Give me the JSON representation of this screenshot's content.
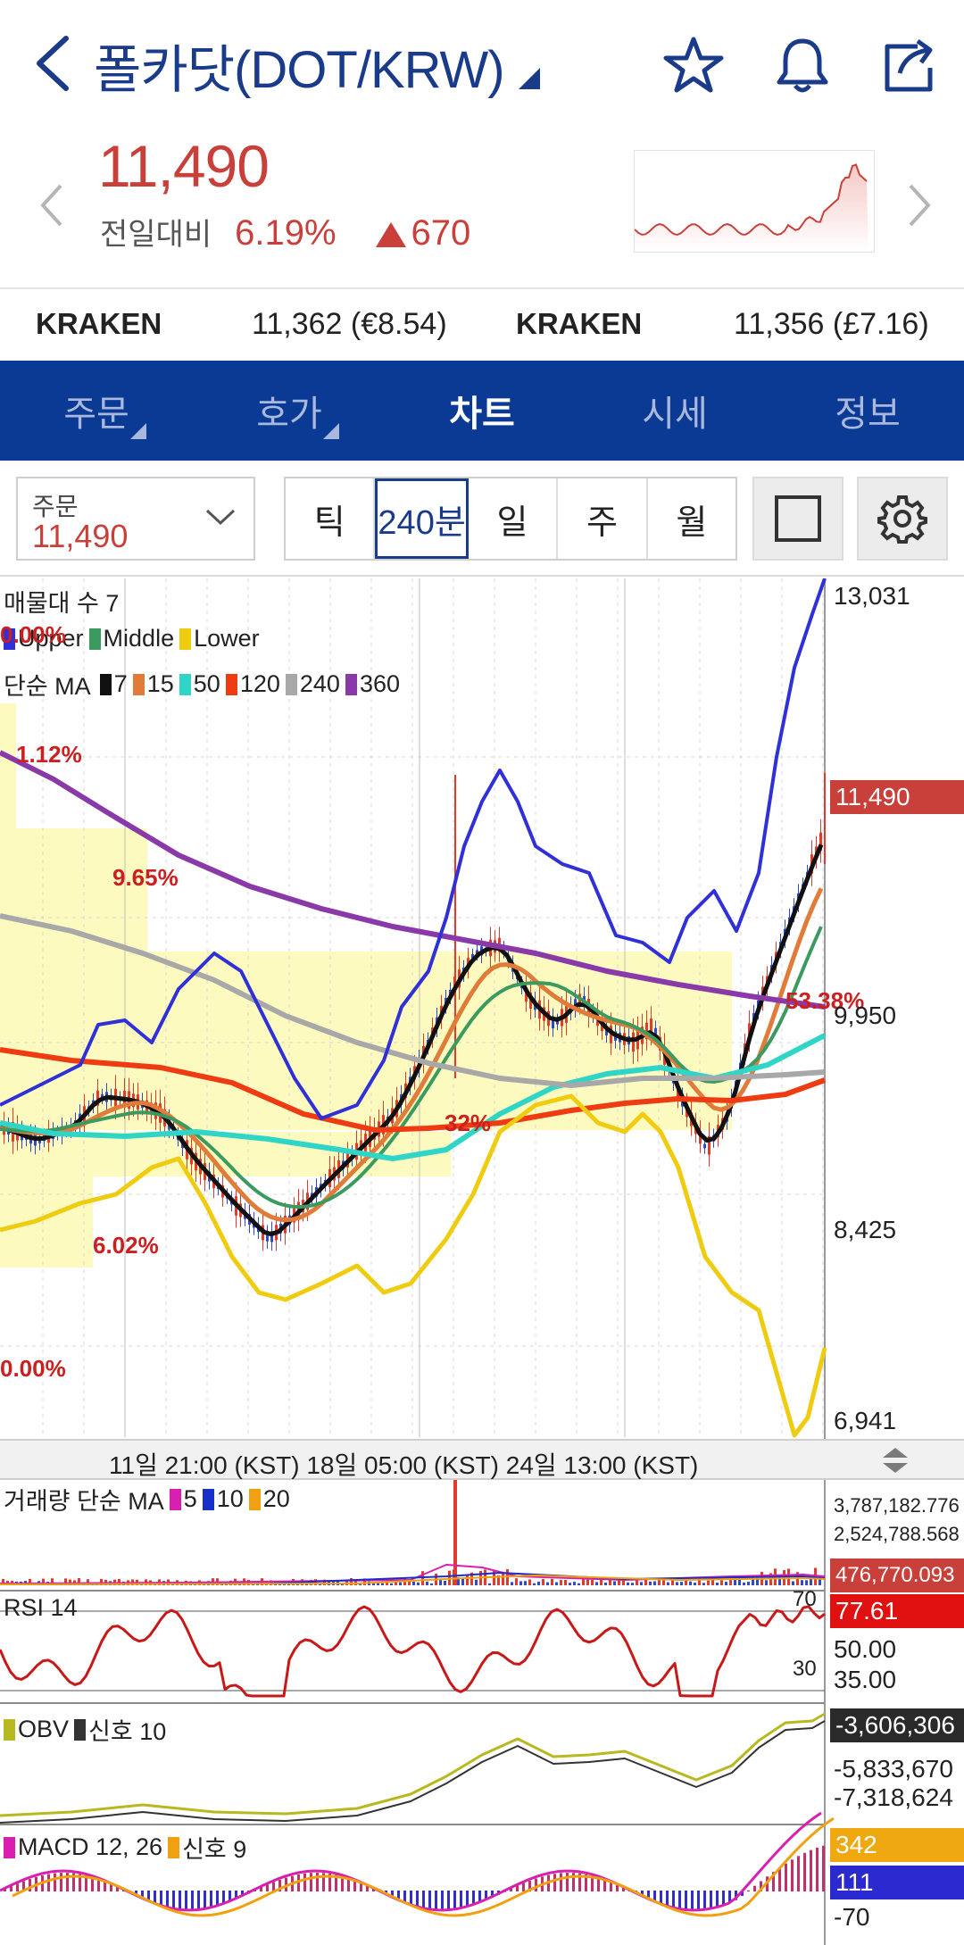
{
  "header": {
    "title": "폴카닷(DOT/KRW)",
    "icons": [
      "back-chevron-icon",
      "star-icon",
      "bell-icon",
      "share-icon"
    ]
  },
  "price": {
    "current": "11,490",
    "change_label": "전일대비",
    "change_pct": "6.19%",
    "change_abs": "670",
    "color_up": "#c9403b"
  },
  "exchanges": [
    {
      "name": "KRAKEN",
      "value": "11,362 (€8.54)"
    },
    {
      "name": "KRAKEN",
      "value": "11,356 (£7.16)"
    }
  ],
  "tabs": [
    {
      "label": "주문",
      "active": false
    },
    {
      "label": "호가",
      "active": false
    },
    {
      "label": "차트",
      "active": true
    },
    {
      "label": "시세",
      "active": false
    },
    {
      "label": "정보",
      "active": false
    }
  ],
  "toolbar": {
    "order_label": "주문",
    "order_value": "11,490",
    "periods": [
      {
        "label": "틱",
        "active": false
      },
      {
        "label": "240분",
        "active": true
      },
      {
        "label": "일",
        "active": false
      },
      {
        "label": "주",
        "active": false
      },
      {
        "label": "월",
        "active": false
      }
    ]
  },
  "chart": {
    "volume_profile_label": "매물대 수 7",
    "bollinger": {
      "upper": "Upper",
      "middle": "Middle",
      "lower": "Lower"
    },
    "ma_title": "단순 MA",
    "ma_items": [
      {
        "label": "7",
        "color": "#111111"
      },
      {
        "label": "15",
        "color": "#e07b39"
      },
      {
        "label": "50",
        "color": "#2fd6c8"
      },
      {
        "label": "120",
        "color": "#ef3b12"
      },
      {
        "label": "240",
        "color": "#a8a8a8"
      },
      {
        "label": "360",
        "color": "#8a3aa8"
      }
    ],
    "price_axis": [
      "13,031",
      "9,950",
      "8,425",
      "6,941"
    ],
    "price_tag": "11,490",
    "fib_labels": [
      "0.00%",
      "1.12%",
      "9.65%",
      "32%",
      "6.02%",
      "0.00%",
      "53.38%"
    ],
    "time_axis": "11일 21:00 (KST) 18일 05:00 (KST) 24일 13:00 (KST)",
    "volume": {
      "title": "거래량 단순 MA",
      "ma_items": [
        {
          "label": "5",
          "color": "#d81fb0"
        },
        {
          "label": "10",
          "color": "#1930c8"
        },
        {
          "label": "20",
          "color": "#f0a010"
        }
      ],
      "axis": [
        "3,787,182.776",
        "2,524,788.568"
      ],
      "tag": "476,770.093"
    },
    "rsi": {
      "title": "RSI 14",
      "tag": "77.61",
      "axis": [
        "50.00",
        "35.00"
      ],
      "level_high": "70",
      "level_low": "30"
    },
    "obv": {
      "title": "OBV",
      "signal": "신호 10",
      "tag": "-3,606,306",
      "axis": [
        "-5,833,670",
        "-7,318,624"
      ]
    },
    "macd": {
      "title": "MACD 12, 26",
      "signal": "신호 9",
      "tag_a": "342",
      "tag_b": "111",
      "axis": [
        "-70"
      ]
    }
  }
}
